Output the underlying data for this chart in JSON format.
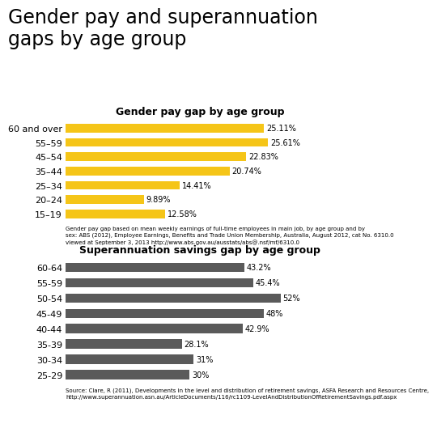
{
  "main_title": "Gender pay and superannuation\ngaps by age group",
  "chart1_title": "Gender pay gap by age group",
  "chart1_categories": [
    "60 and over",
    "55–59",
    "45–54",
    "35–44",
    "25–34",
    "20–24",
    "15–19"
  ],
  "chart1_values": [
    25.11,
    25.61,
    22.83,
    20.74,
    14.41,
    9.89,
    12.58
  ],
  "chart1_labels": [
    "25.11%",
    "25.61%",
    "22.83%",
    "20.74%",
    "14.41%",
    "9.89%",
    "12.58%"
  ],
  "chart1_color": "#F5C518",
  "chart1_note": "Gender pay gap based on mean weekly earnings of full-time employees in main job, by age group and by\nsex: ABS (2012), Employee Earnings, Benefits and Trade Union Membership, Australia, August 2012, cat No. 6310.0\nviewed at September 3, 2013 http://www.abs.gov.au/ausstats/abs@.nsf/mf/6310.0",
  "chart2_title": "Superannuation savings gap by age group",
  "chart2_categories": [
    "60-64",
    "55-59",
    "50-54",
    "45-49",
    "40-44",
    "35-39",
    "30-34",
    "25-29"
  ],
  "chart2_values": [
    43.2,
    45.4,
    52.0,
    48.0,
    42.9,
    28.1,
    31.0,
    30.0
  ],
  "chart2_labels": [
    "43.2%",
    "45.4%",
    "52%",
    "48%",
    "42.9%",
    "28.1%",
    "31%",
    "30%"
  ],
  "chart2_color": "#5a5a5a",
  "chart2_note": "Source: Clare, R (2011), Developments in the level and distribution of retirement savings, ASFA Research and Resources Centre,\nhttp://www.superannuation.asn.au/ArticleDocuments/116/rc1109-LevelAndDistributionOfRetirementSavings.pdf.aspx",
  "background_color": "#FFFFFF",
  "bar_height": 0.6
}
